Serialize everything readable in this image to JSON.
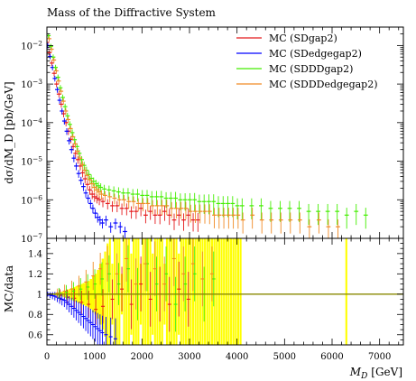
{
  "chart_data": [
    {
      "type": "scatter",
      "panel": "main",
      "title": "Mass of the Diffractive System",
      "ylabel": "dσ/dM_D [pb/GeV]",
      "y_scale": "log",
      "xlim": [
        0,
        7500
      ],
      "ylim": [
        1e-07,
        0.03
      ],
      "y_ticks": [
        {
          "v": 0.01,
          "base": "10",
          "exp": "−2"
        },
        {
          "v": 0.001,
          "base": "10",
          "exp": "−3"
        },
        {
          "v": 0.0001,
          "base": "10",
          "exp": "−4"
        },
        {
          "v": 1e-05,
          "base": "10",
          "exp": "−5"
        },
        {
          "v": 1e-06,
          "base": "10",
          "exp": "−6"
        },
        {
          "v": 1e-07,
          "base": "10",
          "exp": "−7"
        }
      ],
      "legend_position": "top-right",
      "series": [
        {
          "name": "MC (SDgap2)",
          "color": "#e41a1c",
          "x": [
            25,
            75,
            125,
            175,
            225,
            275,
            325,
            375,
            425,
            475,
            525,
            575,
            625,
            675,
            725,
            775,
            825,
            875,
            925,
            975,
            1025,
            1075,
            1125,
            1200,
            1300,
            1400,
            1500,
            1600,
            1700,
            1800,
            1900,
            2000,
            2100,
            2200,
            2300,
            2400,
            2500,
            2600,
            2700,
            2800,
            2900,
            3000,
            3100,
            3200
          ],
          "y": [
            0.012,
            0.0065,
            0.0035,
            0.0019,
            0.001,
            0.00055,
            0.0003,
            0.00017,
            0.0001,
            6e-05,
            3.7e-05,
            2.4e-05,
            1.6e-05,
            1.1e-05,
            7.5e-06,
            5e-06,
            3.5e-06,
            2.5e-06,
            1.8e-06,
            1.4e-06,
            1.2e-06,
            1.1e-06,
            1e-06,
            9e-07,
            8e-07,
            7e-07,
            7e-07,
            6e-07,
            6e-07,
            5e-07,
            5e-07,
            6e-07,
            4e-07,
            5e-07,
            4e-07,
            4e-07,
            5e-07,
            4e-07,
            3e-07,
            4e-07,
            3e-07,
            4e-07,
            3e-07,
            3e-07
          ]
        },
        {
          "name": "MC (SDedgegap2)",
          "color": "#0000ff",
          "x": [
            25,
            75,
            125,
            175,
            225,
            275,
            325,
            375,
            425,
            475,
            525,
            575,
            625,
            675,
            725,
            775,
            825,
            875,
            925,
            975,
            1025,
            1075,
            1125,
            1175,
            1250,
            1350,
            1450,
            1550,
            1650
          ],
          "y": [
            0.01,
            0.0052,
            0.0027,
            0.0014,
            0.00072,
            0.00038,
            0.0002,
            0.00011,
            6e-05,
            3.4e-05,
            2e-05,
            1.2e-05,
            7.5e-06,
            4.8e-06,
            3.2e-06,
            2.2e-06,
            1.5e-06,
            1.1e-06,
            8e-07,
            6e-07,
            4.5e-07,
            3.5e-07,
            3e-07,
            2.5e-07,
            3e-07,
            2e-07,
            2.5e-07,
            2e-07,
            1.5e-07
          ]
        },
        {
          "name": "MC (SDDDgap2)",
          "color": "#44ee00",
          "x": [
            25,
            75,
            125,
            175,
            225,
            275,
            325,
            375,
            425,
            475,
            525,
            575,
            625,
            675,
            725,
            775,
            825,
            875,
            925,
            975,
            1025,
            1075,
            1125,
            1200,
            1300,
            1400,
            1500,
            1600,
            1700,
            1800,
            1900,
            2000,
            2100,
            2200,
            2300,
            2400,
            2500,
            2600,
            2700,
            2800,
            2900,
            3000,
            3100,
            3200,
            3300,
            3400,
            3500,
            3600,
            3700,
            3800,
            3900,
            4000,
            4100,
            4300,
            4500,
            4700,
            4900,
            5100,
            5300,
            5500,
            5700,
            5900,
            6100,
            6300,
            6500,
            6700
          ],
          "y": [
            0.018,
            0.0095,
            0.005,
            0.0027,
            0.0015,
            0.0008,
            0.00045,
            0.00026,
            0.00015,
            9e-05,
            5.5e-05,
            3.6e-05,
            2.4e-05,
            1.6e-05,
            1.1e-05,
            7.8e-06,
            5.8e-06,
            4.5e-06,
            3.6e-06,
            3e-06,
            2.6e-06,
            2.3e-06,
            2.1e-06,
            1.9e-06,
            1.8e-06,
            1.7e-06,
            1.6e-06,
            1.5e-06,
            1.5e-06,
            1.4e-06,
            1.4e-06,
            1.3e-06,
            1.3e-06,
            1.2e-06,
            1.2e-06,
            1.2e-06,
            1.1e-06,
            1.1e-06,
            1.1e-06,
            1e-06,
            1e-06,
            1e-06,
            1e-06,
            9e-07,
            9e-07,
            9e-07,
            9e-07,
            8e-07,
            8e-07,
            8e-07,
            8e-07,
            7e-07,
            7e-07,
            7e-07,
            7e-07,
            6e-07,
            6e-07,
            6e-07,
            6e-07,
            5e-07,
            5e-07,
            5e-07,
            5e-07,
            4e-07,
            5e-07,
            4e-07
          ]
        },
        {
          "name": "MC (SDDDedgegap2)",
          "color": "#f08a24",
          "x": [
            25,
            75,
            125,
            175,
            225,
            275,
            325,
            375,
            425,
            475,
            525,
            575,
            625,
            675,
            725,
            775,
            825,
            875,
            925,
            975,
            1025,
            1075,
            1125,
            1200,
            1300,
            1400,
            1500,
            1600,
            1700,
            1800,
            1900,
            2000,
            2100,
            2200,
            2300,
            2400,
            2500,
            2600,
            2700,
            2800,
            2900,
            3000,
            3100,
            3200,
            3300,
            3400,
            3500,
            3600,
            3700,
            3800,
            3900,
            4000,
            4100,
            4300,
            4500,
            4700,
            4900,
            5100,
            5300,
            5500,
            5700,
            5900,
            6100
          ],
          "y": [
            0.015,
            0.008,
            0.0042,
            0.0022,
            0.0012,
            0.00065,
            0.00036,
            0.0002,
            0.00012,
            7e-05,
            4.3e-05,
            2.8e-05,
            1.8e-05,
            1.2e-05,
            8.2e-06,
            5.8e-06,
            4.3e-06,
            3.3e-06,
            2.6e-06,
            2.1e-06,
            1.8e-06,
            1.6e-06,
            1.4e-06,
            1.3e-06,
            1.2e-06,
            1.1e-06,
            1e-06,
            1e-06,
            9e-07,
            9e-07,
            8e-07,
            8e-07,
            8e-07,
            7e-07,
            7e-07,
            7e-07,
            7e-07,
            6e-07,
            6e-07,
            6e-07,
            6e-07,
            5e-07,
            5e-07,
            5e-07,
            5e-07,
            5e-07,
            4e-07,
            4e-07,
            4e-07,
            4e-07,
            4e-07,
            4e-07,
            3e-07,
            4e-07,
            3e-07,
            3e-07,
            3e-07,
            3e-07,
            3e-07,
            2e-07,
            3e-07,
            2e-07,
            2e-07
          ]
        }
      ]
    },
    {
      "type": "scatter",
      "panel": "ratio",
      "ylabel": "MC/data",
      "xlabel_symbol": "M",
      "xlabel_sub": "D",
      "xlabel_unit": "[GeV]",
      "xlim": [
        0,
        7500
      ],
      "ylim": [
        0.5,
        1.55
      ],
      "x_ticks": [
        0,
        1000,
        2000,
        3000,
        4000,
        5000,
        6000,
        7000
      ],
      "y_ticks": [
        "0.6",
        "0.8",
        "1",
        "1.2",
        "1.4"
      ],
      "reference_line": 1,
      "reference_color": "#888800",
      "uncertainty_band_color": "#ffff00",
      "band": {
        "x": [
          25,
          75,
          125,
          175,
          225,
          275,
          325,
          375,
          425,
          475,
          525,
          575,
          625,
          675,
          725,
          775,
          825,
          875,
          925,
          975,
          1025,
          1075,
          1125,
          1175,
          1225,
          1275,
          1325,
          1375,
          1425,
          1475,
          1525,
          1575,
          1625,
          1675,
          1725,
          1775,
          1825,
          1875,
          1925,
          1975,
          2025,
          2075,
          2125,
          2175,
          2225,
          2275,
          2325,
          2375,
          2425,
          2475,
          2525,
          2575,
          2625,
          2675,
          2725,
          2775,
          2825,
          2875,
          2925,
          2975,
          3025,
          3075,
          3125,
          3175,
          3225,
          3275,
          3325,
          3375,
          3425,
          3475,
          3525,
          3575,
          3625,
          3675,
          3725,
          3775,
          3825,
          3875,
          3925,
          3975,
          4025,
          4075,
          6300
        ],
        "half_width": [
          0.0,
          0.005,
          0.008,
          0.01,
          0.015,
          0.02,
          0.025,
          0.03,
          0.04,
          0.05,
          0.06,
          0.07,
          0.08,
          0.09,
          0.1,
          0.11,
          0.12,
          0.13,
          0.15,
          0.18,
          0.2,
          0.24,
          0.3,
          0.35,
          0.42,
          0.5,
          0.55,
          0.3,
          0.55,
          0.55,
          0.55,
          0.2,
          0.55,
          0.55,
          0.55,
          0.4,
          0.55,
          0.55,
          0.55,
          0.3,
          0.55,
          0.55,
          0.55,
          0.55,
          0.4,
          0.55,
          0.55,
          0.55,
          0.55,
          0.3,
          0.55,
          0.55,
          0.55,
          0.55,
          0.55,
          0.4,
          0.55,
          0.55,
          0.55,
          0.55,
          0.55,
          0.55,
          0.55,
          0.55,
          0.55,
          0.55,
          0.55,
          0.55,
          0.55,
          0.55,
          0.55,
          0.55,
          0.55,
          0.55,
          0.55,
          0.55,
          0.55,
          0.55,
          0.55,
          0.55,
          0.55,
          0.55,
          0.55
        ]
      },
      "series": [
        {
          "name": "MC (SDgap2)",
          "color": "#e41a1c",
          "x": [
            300,
            450,
            600,
            750,
            900,
            1050,
            1200,
            1400,
            1600,
            1800,
            2000,
            2200,
            2400,
            2600,
            2800,
            3000
          ],
          "y": [
            0.99,
            0.97,
            0.96,
            0.92,
            0.9,
            0.85,
            0.88,
            0.95,
            1.05,
            0.9,
            1.1,
            0.95,
            1.0,
            0.9,
            1.05,
            0.95
          ]
        },
        {
          "name": "MC (SDedgegap2)",
          "color": "#0000ff",
          "x": [
            25,
            75,
            125,
            175,
            225,
            275,
            325,
            375,
            425,
            475,
            525,
            575,
            625,
            675,
            725,
            775,
            825,
            875,
            925,
            975,
            1025,
            1075,
            1125,
            1175,
            1250,
            1350,
            1450
          ],
          "y": [
            1.0,
            0.99,
            0.985,
            0.98,
            0.97,
            0.96,
            0.95,
            0.94,
            0.92,
            0.9,
            0.88,
            0.86,
            0.84,
            0.82,
            0.8,
            0.78,
            0.76,
            0.74,
            0.72,
            0.7,
            0.68,
            0.66,
            0.64,
            0.62,
            0.6,
            0.58,
            0.56
          ]
        },
        {
          "name": "MC (SDDDgap2)",
          "color": "#44ee00",
          "x": [
            250,
            400,
            550,
            700,
            850,
            1000,
            1150,
            1300,
            1500,
            1700,
            1900,
            2100,
            2300,
            2500,
            2700,
            2900,
            3100,
            3300,
            3500
          ],
          "y": [
            1.01,
            1.02,
            1.03,
            1.05,
            1.07,
            1.1,
            1.15,
            1.2,
            1.1,
            1.25,
            1.0,
            1.3,
            1.1,
            1.2,
            0.9,
            1.1,
            1.2,
            1.0,
            1.15
          ]
        },
        {
          "name": "MC (SDDDedgegap2)",
          "color": "#f08a24",
          "x": [
            200,
            350,
            500,
            650,
            800,
            950,
            1100,
            1250,
            1450,
            1650,
            1850,
            2050,
            2250,
            2450,
            2650,
            2850,
            3050,
            3250,
            3450
          ],
          "y": [
            1.01,
            1.03,
            1.05,
            1.08,
            1.12,
            1.18,
            1.25,
            1.3,
            1.2,
            1.35,
            1.1,
            1.3,
            1.25,
            1.1,
            1.35,
            1.2,
            1.3,
            1.15,
            1.2
          ]
        }
      ]
    }
  ]
}
